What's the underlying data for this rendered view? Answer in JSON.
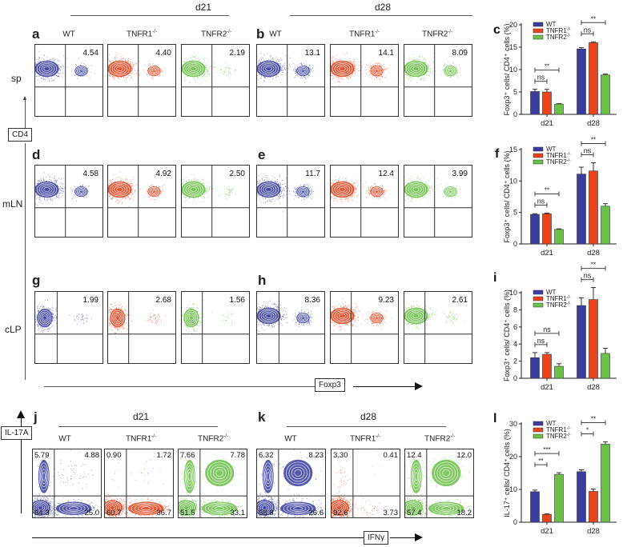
{
  "labels": {
    "d21": "d21",
    "d28": "d28",
    "sp": "sp",
    "mLN": "mLN",
    "cLP": "cLP",
    "cd4": "CD4",
    "foxp3": "Foxp3",
    "il17a": "IL-17A",
    "ifng": "IFNγ"
  },
  "panel_letters": {
    "a": "a",
    "b": "b",
    "c": "c",
    "d": "d",
    "e": "e",
    "f": "f",
    "g": "g",
    "h": "h",
    "i": "i",
    "j": "j",
    "k": "k",
    "l": "l"
  },
  "genotypes": [
    {
      "name": "WT",
      "sup": ""
    },
    {
      "name": "TNFR1",
      "sup": "-/-"
    },
    {
      "name": "TNFR2",
      "sup": "-/-"
    }
  ],
  "colors": {
    "WT": "#3a3d9e",
    "TNFR1": "#e8451f",
    "TNFR2": "#6cc04a"
  },
  "foxp3_flow": [
    {
      "tissue": "sp",
      "values": [
        [
          "4.54",
          "4.40",
          "2.19"
        ],
        [
          "13.1",
          "14.1",
          "8.09"
        ]
      ]
    },
    {
      "tissue": "mLN",
      "values": [
        [
          "4.58",
          "4.92",
          "2.50"
        ],
        [
          "11.7",
          "12.4",
          "3.99"
        ]
      ]
    },
    {
      "tissue": "cLP",
      "values": [
        [
          "1.99",
          "2.68",
          "1.56"
        ],
        [
          "8.36",
          "9.23",
          "2.61"
        ]
      ]
    }
  ],
  "il17_flow": {
    "quadrant_order": [
      "IL-17A+IFNγ-",
      "IL-17A+IFNγ+",
      "IL-17A-IFNγ-",
      "IL-17A-IFNγ+"
    ],
    "values": [
      [
        [
          "5.79",
          "4.88",
          "64.3",
          "25.0"
        ],
        [
          "0.90",
          "1.72",
          "60.7",
          "36.7"
        ],
        [
          "7.66",
          "7.78",
          "51.5",
          "33.1"
        ]
      ],
      [
        [
          "6.32",
          "8.23",
          "58.8",
          "26.6"
        ],
        [
          "3.30",
          "0.41",
          "92.6",
          "3.73"
        ],
        [
          "12.4",
          "12.0",
          "57.4",
          "18.2"
        ]
      ]
    ]
  },
  "chart_data": [
    {
      "panel": "c",
      "type": "bar",
      "categories": [
        "d21",
        "d28"
      ],
      "ylabel": "Foxp3⁺ cells/ CD4⁺ cells (%)",
      "ylim": [
        0,
        20
      ],
      "yticks": [
        "0",
        "5",
        "10",
        "15",
        "20"
      ],
      "legend": "top-left",
      "series": [
        {
          "name": "WT",
          "sup": "",
          "values": [
            5.1,
            14.6
          ],
          "errors": [
            0.5,
            0.3
          ]
        },
        {
          "name": "TNFR1",
          "sup": "-/-",
          "values": [
            5.0,
            16.0
          ],
          "errors": [
            0.6,
            0.2
          ]
        },
        {
          "name": "TNFR2",
          "sup": "-/-",
          "values": [
            2.3,
            8.8
          ],
          "errors": [
            0.1,
            0.2
          ]
        }
      ],
      "significance": [
        [
          {
            "pair": "WT-TNFR1",
            "label": "ns"
          },
          {
            "pair": "WT-TNFR2",
            "label": "**"
          }
        ],
        [
          {
            "pair": "WT-TNFR1",
            "label": "ns"
          },
          {
            "pair": "WT-TNFR2",
            "label": "**"
          }
        ]
      ]
    },
    {
      "panel": "f",
      "type": "bar",
      "categories": [
        "d21",
        "d28"
      ],
      "ylabel": "Foxp3⁺ cells/ CD4⁺ cells (%)",
      "ylim": [
        0,
        15
      ],
      "yticks": [
        "0",
        "5",
        "10",
        "15"
      ],
      "legend": "top-left",
      "series": [
        {
          "name": "WT",
          "sup": "",
          "values": [
            4.7,
            11.1
          ],
          "errors": [
            0.1,
            1.1
          ]
        },
        {
          "name": "TNFR1",
          "sup": "-/-",
          "values": [
            4.8,
            11.6
          ],
          "errors": [
            0.1,
            1.3
          ]
        },
        {
          "name": "TNFR2",
          "sup": "-/-",
          "values": [
            2.3,
            6.0
          ],
          "errors": [
            0.1,
            0.4
          ]
        }
      ],
      "significance": [
        [
          {
            "pair": "WT-TNFR1",
            "label": "ns"
          },
          {
            "pair": "WT-TNFR2",
            "label": "**"
          }
        ],
        [
          {
            "pair": "WT-TNFR1",
            "label": "ns"
          },
          {
            "pair": "WT-TNFR2",
            "label": "**"
          }
        ]
      ]
    },
    {
      "panel": "i",
      "type": "bar",
      "categories": [
        "d21",
        "d28"
      ],
      "ylabel": "Foxp3⁺ cells/ CD4⁺ cells (%)",
      "ylim": [
        0,
        10
      ],
      "yticks": [
        "0",
        "2",
        "4",
        "6",
        "8",
        "10"
      ],
      "legend": "top-left",
      "series": [
        {
          "name": "WT",
          "sup": "",
          "values": [
            2.4,
            8.5
          ],
          "errors": [
            0.6,
            0.9
          ]
        },
        {
          "name": "TNFR1",
          "sup": "-/-",
          "values": [
            2.8,
            9.2
          ],
          "errors": [
            0.2,
            1.4
          ]
        },
        {
          "name": "TNFR2",
          "sup": "-/-",
          "values": [
            1.4,
            2.9
          ],
          "errors": [
            0.3,
            0.6
          ]
        }
      ],
      "significance": [
        [
          {
            "pair": "WT-TNFR1",
            "label": "ns"
          },
          {
            "pair": "WT-TNFR2",
            "label": "ns"
          }
        ],
        [
          {
            "pair": "WT-TNFR1",
            "label": "ns"
          },
          {
            "pair": "WT-TNFR2",
            "label": "**"
          }
        ]
      ]
    },
    {
      "panel": "l",
      "type": "bar",
      "categories": [
        "d21",
        "d28"
      ],
      "ylabel": "IL-17⁺ cells/ CD4⁺ cells (%)",
      "ylim": [
        0,
        30
      ],
      "yticks": [
        "0",
        "10",
        "20",
        "30"
      ],
      "legend": "top-left",
      "series": [
        {
          "name": "WT",
          "sup": "",
          "values": [
            9.3,
            15.4
          ],
          "errors": [
            0.5,
            0.6
          ]
        },
        {
          "name": "TNFR1",
          "sup": "-/-",
          "values": [
            2.4,
            9.4
          ],
          "errors": [
            0.2,
            0.7
          ]
        },
        {
          "name": "TNFR2",
          "sup": "-/-",
          "values": [
            14.6,
            23.8
          ],
          "errors": [
            0.5,
            0.7
          ]
        }
      ],
      "significance": [
        [
          {
            "pair": "WT-TNFR1",
            "label": "**"
          },
          {
            "pair": "WT-TNFR2",
            "label": "***"
          }
        ],
        [
          {
            "pair": "WT-TNFR1",
            "label": "*"
          },
          {
            "pair": "WT-TNFR2",
            "label": "**"
          }
        ]
      ]
    }
  ]
}
